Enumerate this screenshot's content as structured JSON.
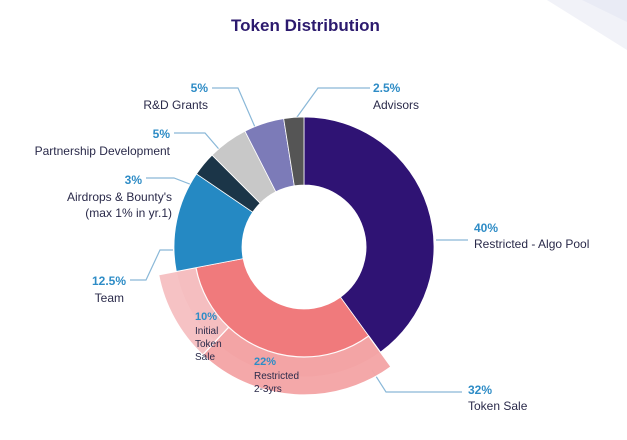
{
  "title": "Token Distribution",
  "colors": {
    "algo_pool": "#2f1374",
    "token_sale": "#f07a7c",
    "initial_sale": "#f6c1c3",
    "restricted_2_3": "#f4a6a7",
    "team": "#2589c3",
    "airdrops": "#1b3548",
    "partnership": "#c8c8c8",
    "rnd": "#7c7bb8",
    "advisors": "#555555",
    "leader": "#8ab8d8"
  },
  "chart_data": {
    "type": "pie",
    "variant": "donut",
    "title": "Token Distribution",
    "slices": [
      {
        "label": "Restricted - Algo Pool",
        "pct_label": "40%",
        "value": 40,
        "color_key": "algo_pool"
      },
      {
        "label": "Token Sale",
        "pct_label": "32%",
        "value": 32,
        "color_key": "token_sale",
        "subslices": [
          {
            "label_lines": [
              "Restricted",
              "2-3yrs"
            ],
            "pct_label": "22%",
            "value": 22,
            "color_key": "restricted_2_3"
          },
          {
            "label_lines": [
              "Initial",
              "Token",
              "Sale"
            ],
            "pct_label": "10%",
            "value": 10,
            "color_key": "initial_sale"
          }
        ]
      },
      {
        "label": "Team",
        "pct_label": "12.5%",
        "value": 12.5,
        "color_key": "team"
      },
      {
        "label_lines": [
          "Airdrops & Bounty's",
          "(max 1% in yr.1)"
        ],
        "pct_label": "3%",
        "value": 3,
        "color_key": "airdrops"
      },
      {
        "label": "Partnership Development",
        "pct_label": "5%",
        "value": 5,
        "color_key": "partnership"
      },
      {
        "label": "R&D Grants",
        "pct_label": "5%",
        "value": 5,
        "color_key": "rnd"
      },
      {
        "label": "Advisors",
        "pct_label": "2.5%",
        "value": 2.5,
        "color_key": "advisors"
      }
    ]
  }
}
